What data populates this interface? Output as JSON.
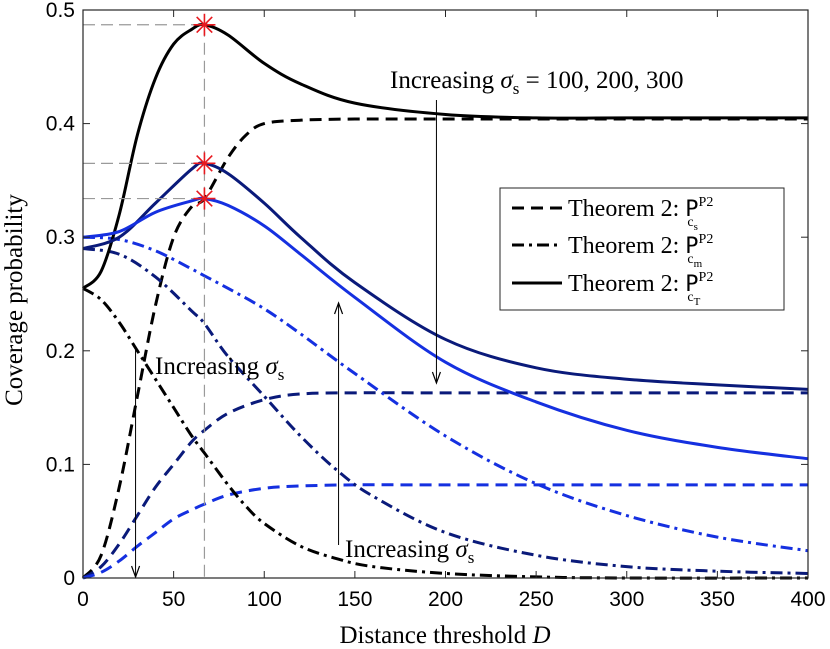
{
  "chart_data": {
    "type": "line",
    "title": "",
    "xlabel": "Distance threshold",
    "xlabel_var": "D",
    "ylabel": "Coverage probability",
    "xlim": [
      0,
      400
    ],
    "ylim": [
      0,
      0.5
    ],
    "xticks": [
      0,
      50,
      100,
      150,
      200,
      250,
      300,
      350,
      400
    ],
    "yticks": [
      0,
      0.1,
      0.2,
      0.3,
      0.4,
      0.5
    ],
    "xtick_labels": [
      "0",
      "50",
      "100",
      "150",
      "200",
      "250",
      "300",
      "350",
      "400"
    ],
    "ytick_labels": [
      "0",
      "0.1",
      "0.2",
      "0.3",
      "0.4",
      "0.5"
    ],
    "grid": false,
    "legend": {
      "position": "right-middle",
      "entries": [
        {
          "label": "Theorem 2:",
          "symbol": "P",
          "sup": "P2",
          "sub": "c",
          "subsub": "s",
          "style": "dashed"
        },
        {
          "label": "Theorem 2:",
          "symbol": "P",
          "sup": "P2",
          "sub": "c",
          "subsub": "m",
          "style": "dashdot"
        },
        {
          "label": "Theorem 2:",
          "symbol": "P",
          "sup": "P2",
          "sub": "c",
          "subsub": "T",
          "style": "solid"
        }
      ]
    },
    "annotations": {
      "top": {
        "prefix": "Increasing",
        "var": "σ",
        "sub": "s",
        "suffix": " = 100, 200, 300"
      },
      "middle": {
        "prefix": "Increasing",
        "var": "σ",
        "sub": "s"
      },
      "bottom": {
        "prefix": "Increasing",
        "var": "σ",
        "sub": "s"
      }
    },
    "optimum_D": 67,
    "series": [
      {
        "name": "P_cs sigma=100",
        "group": "cs",
        "color": "#000000",
        "style": "dashed",
        "x": [
          0,
          10,
          20,
          30,
          40,
          50,
          60,
          67,
          80,
          90,
          100,
          120,
          150,
          200,
          400
        ],
        "y": [
          0,
          0.02,
          0.08,
          0.16,
          0.24,
          0.3,
          0.327,
          0.334,
          0.37,
          0.39,
          0.4,
          0.403,
          0.404,
          0.404,
          0.404
        ]
      },
      {
        "name": "P_cs sigma=200",
        "group": "cs",
        "color": "#0a1a7a",
        "style": "dashed",
        "x": [
          0,
          10,
          20,
          30,
          40,
          50,
          60,
          67,
          80,
          100,
          120,
          150,
          200,
          400
        ],
        "y": [
          0,
          0.01,
          0.03,
          0.055,
          0.08,
          0.1,
          0.12,
          0.13,
          0.145,
          0.157,
          0.162,
          0.163,
          0.163,
          0.163
        ]
      },
      {
        "name": "P_cs sigma=300",
        "group": "cs",
        "color": "#1530e0",
        "style": "dashed",
        "x": [
          0,
          10,
          20,
          30,
          40,
          50,
          60,
          67,
          80,
          100,
          120,
          150,
          200,
          400
        ],
        "y": [
          0,
          0.005,
          0.015,
          0.028,
          0.04,
          0.052,
          0.06,
          0.065,
          0.073,
          0.079,
          0.081,
          0.082,
          0.082,
          0.082
        ]
      },
      {
        "name": "P_cm sigma=100",
        "group": "cm",
        "color": "#000000",
        "style": "dashdot",
        "x": [
          0,
          10,
          20,
          30,
          40,
          50,
          60,
          67,
          80,
          90,
          100,
          120,
          140,
          160,
          200,
          250,
          300,
          400
        ],
        "y": [
          0.255,
          0.245,
          0.225,
          0.2,
          0.175,
          0.15,
          0.125,
          0.11,
          0.082,
          0.063,
          0.048,
          0.028,
          0.017,
          0.01,
          0.004,
          0.001,
          0.0,
          0.0
        ]
      },
      {
        "name": "P_cm sigma=200",
        "group": "cm",
        "color": "#0a1a7a",
        "style": "dashdot",
        "x": [
          0,
          20,
          40,
          60,
          67,
          80,
          100,
          120,
          140,
          160,
          200,
          250,
          300,
          350,
          400
        ],
        "y": [
          0.29,
          0.285,
          0.265,
          0.235,
          0.224,
          0.195,
          0.16,
          0.125,
          0.095,
          0.072,
          0.04,
          0.02,
          0.01,
          0.006,
          0.004
        ]
      },
      {
        "name": "P_cm sigma=300",
        "group": "cm",
        "color": "#1530e0",
        "style": "dashdot",
        "x": [
          0,
          20,
          40,
          60,
          67,
          80,
          100,
          120,
          150,
          200,
          250,
          300,
          350,
          400
        ],
        "y": [
          0.3,
          0.298,
          0.288,
          0.272,
          0.266,
          0.255,
          0.237,
          0.215,
          0.18,
          0.125,
          0.083,
          0.055,
          0.036,
          0.024
        ]
      },
      {
        "name": "P_cT sigma=100",
        "group": "cT",
        "color": "#000000",
        "style": "solid",
        "x": [
          0,
          10,
          20,
          30,
          40,
          50,
          60,
          67,
          80,
          100,
          120,
          150,
          200,
          250,
          300,
          400
        ],
        "y": [
          0.255,
          0.27,
          0.32,
          0.39,
          0.44,
          0.47,
          0.483,
          0.487,
          0.478,
          0.453,
          0.435,
          0.418,
          0.408,
          0.405,
          0.405,
          0.405
        ]
      },
      {
        "name": "P_cT sigma=200",
        "group": "cT",
        "color": "#0a1a7a",
        "style": "solid",
        "x": [
          0,
          20,
          40,
          60,
          67,
          80,
          100,
          120,
          150,
          200,
          250,
          300,
          350,
          400
        ],
        "y": [
          0.29,
          0.3,
          0.33,
          0.36,
          0.365,
          0.356,
          0.33,
          0.3,
          0.26,
          0.21,
          0.185,
          0.175,
          0.17,
          0.166
        ]
      },
      {
        "name": "P_cT sigma=300",
        "group": "cT",
        "color": "#1530e0",
        "style": "solid",
        "x": [
          0,
          20,
          40,
          60,
          67,
          80,
          100,
          120,
          150,
          200,
          250,
          300,
          350,
          400
        ],
        "y": [
          0.3,
          0.305,
          0.322,
          0.332,
          0.334,
          0.328,
          0.31,
          0.285,
          0.247,
          0.19,
          0.155,
          0.13,
          0.115,
          0.105
        ]
      }
    ],
    "markers": [
      {
        "x": 67,
        "y": 0.487,
        "color": "#e8191f"
      },
      {
        "x": 67,
        "y": 0.365,
        "color": "#e8191f"
      },
      {
        "x": 67,
        "y": 0.334,
        "color": "#e8191f"
      }
    ]
  }
}
